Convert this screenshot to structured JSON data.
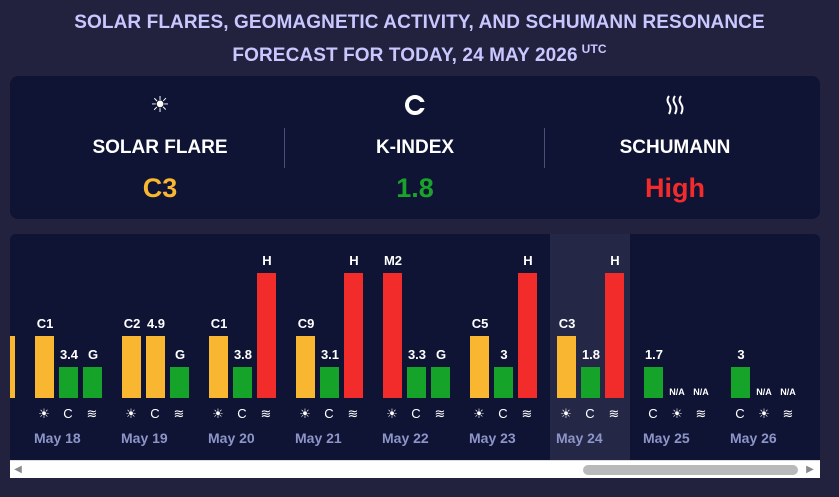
{
  "title": {
    "line1": "SOLAR FLARES, GEOMAGNETIC ACTIVITY, AND SCHUMANN RESONANCE",
    "line2": "FORECAST FOR TODAY, 24 MAY 2026",
    "tz": "UTC"
  },
  "summary": {
    "solar": {
      "icon": "sun-icon",
      "label": "SOLAR FLARE",
      "value": "C3",
      "color": "#f9b630"
    },
    "kindex": {
      "icon": "magnet-icon",
      "label": "K-INDEX",
      "value": "1.8",
      "color": "#1aa32a"
    },
    "schumann": {
      "icon": "waves-icon",
      "label": "SCHUMANN",
      "value": "High",
      "color": "#f22b2b"
    }
  },
  "colors": {
    "flare": "#f9b630",
    "kindex": "#16a32a",
    "schumann": "#f22b2b",
    "today_bg": "#242846"
  },
  "days": [
    {
      "date": "May 18",
      "flare": "C1",
      "flare_level": 0.45,
      "k": "3.4",
      "k_level": 0.45,
      "s": "G",
      "s_level": 0.45
    },
    {
      "date": "May 19",
      "flare": "C2",
      "flare_level": 0.45,
      "k": "4.9",
      "k_level": 0.45,
      "s": "G",
      "s_level": 0.45
    },
    {
      "date": "May 20",
      "flare": "C1",
      "flare_level": 0.45,
      "k": "3.8",
      "k_level": 0.45,
      "s": "H",
      "s_level": 0.45
    },
    {
      "date": "May 21",
      "flare": "C9",
      "flare_level": 0.45,
      "k": "3.1",
      "k_level": 0.45,
      "s": "H",
      "s_level": 0.45
    },
    {
      "date": "May 22",
      "flare": "M2",
      "flare_level": 0.45,
      "k": "3.3",
      "k_level": 0.45,
      "s": "G",
      "s_level": 0.45
    },
    {
      "date": "May 23",
      "flare": "C5",
      "flare_level": 0.45,
      "k": "3",
      "k_level": 0.45,
      "s": "H",
      "s_level": 0.45
    },
    {
      "date": "May 24",
      "flare": "C3",
      "flare_level": 0.45,
      "k": "1.8",
      "k_level": 0.45,
      "s": "H",
      "s_level": 0.45
    },
    {
      "date": "May 25",
      "flare": "",
      "k": "1.7",
      "s": "",
      "na1": "N/A",
      "na2": "N/A"
    },
    {
      "date": "May 26",
      "flare": "",
      "k": "3",
      "s": "",
      "na1": "N/A",
      "na2": "N/A"
    }
  ],
  "scrollbar": {
    "left_arrow": "◀",
    "right_arrow": "▶"
  }
}
